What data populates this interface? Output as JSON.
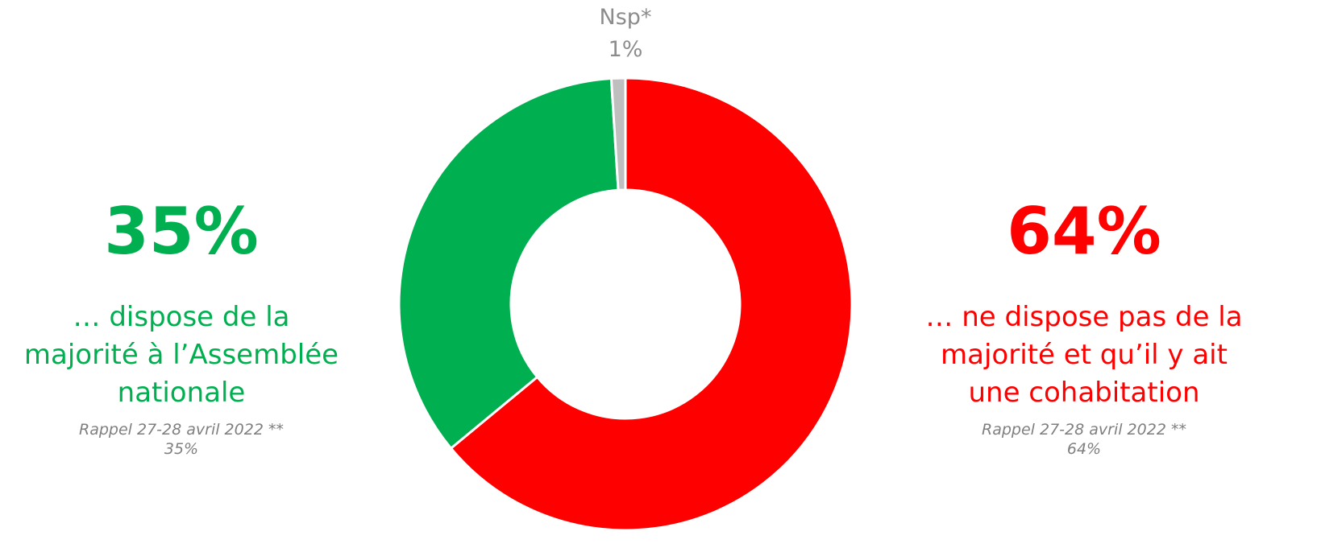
{
  "chart_data": {
    "type": "donut",
    "categories": [
      "… ne dispose pas de la\nmajorité et qu’il y ait\nune cohabitation",
      "… dispose de la\nmajorité à l’Assemblée\nnationale",
      "Nsp*"
    ],
    "values": [
      64,
      35,
      1
    ],
    "value_labels": [
      "64%",
      "35%",
      "1%"
    ],
    "colors": [
      "#ff0000",
      "#00b050",
      "#bfbfbf"
    ],
    "recall_label": "Rappel 27-28 avril 2022 **",
    "recall_values": [
      64,
      35,
      null
    ],
    "recall_value_labels": [
      "64%",
      "35%",
      null
    ]
  }
}
